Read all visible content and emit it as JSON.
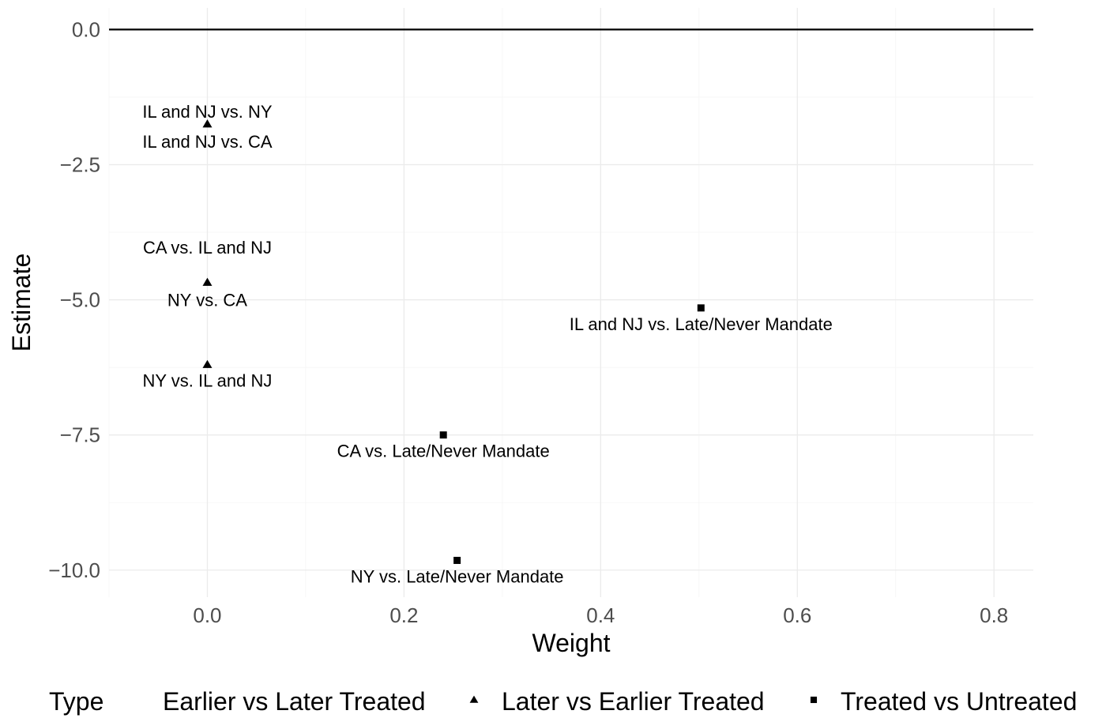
{
  "chart_data": {
    "type": "scatter",
    "xlabel": "Weight",
    "ylabel": "Estimate",
    "xlim": [
      -0.1,
      0.84
    ],
    "ylim": [
      -10.5,
      0.4
    ],
    "x_ticks": [
      {
        "value": 0.0,
        "label": "0.0"
      },
      {
        "value": 0.2,
        "label": "0.2"
      },
      {
        "value": 0.4,
        "label": "0.4"
      },
      {
        "value": 0.6,
        "label": "0.6"
      },
      {
        "value": 0.8,
        "label": "0.8"
      }
    ],
    "y_ticks": [
      {
        "value": 0.0,
        "label": "0.0"
      },
      {
        "value": -2.5,
        "label": "−2.5"
      },
      {
        "value": -5.0,
        "label": "−5.0"
      },
      {
        "value": -7.5,
        "label": "−7.5"
      },
      {
        "value": -10.0,
        "label": "−10.0"
      }
    ],
    "reference_line_y": 0.0,
    "grid": true,
    "legend": {
      "position": "bottom",
      "title": "Type",
      "entries": [
        {
          "name": "Earlier vs Later Treated",
          "shape": "circle"
        },
        {
          "name": "Later vs Earlier Treated",
          "shape": "triangle"
        },
        {
          "name": "Treated vs Untreated",
          "shape": "square"
        }
      ]
    },
    "series": [
      {
        "name": "Earlier vs Later Treated",
        "shape": "circle",
        "points": [
          {
            "x": 0.0,
            "y": -1.75,
            "label": "IL and NJ vs. NY"
          },
          {
            "x": 0.0,
            "y": -4.0,
            "label": "CA vs. IL and NJ"
          }
        ]
      },
      {
        "name": "Later vs Earlier Treated",
        "shape": "triangle",
        "points": [
          {
            "x": 0.0,
            "y": -1.75,
            "label": "IL and NJ vs. CA"
          },
          {
            "x": 0.0,
            "y": -4.68,
            "label": "NY vs. CA"
          },
          {
            "x": 0.0,
            "y": -6.2,
            "label": "NY vs. IL and NJ"
          }
        ]
      },
      {
        "name": "Treated vs Untreated",
        "shape": "square",
        "points": [
          {
            "x": 0.502,
            "y": -5.15,
            "label": "IL and NJ vs. Late/Never Mandate"
          },
          {
            "x": 0.24,
            "y": -7.5,
            "label": "CA vs. Late/Never Mandate"
          },
          {
            "x": 0.254,
            "y": -9.82,
            "label": "NY vs. Late/Never Mandate"
          }
        ]
      }
    ]
  }
}
